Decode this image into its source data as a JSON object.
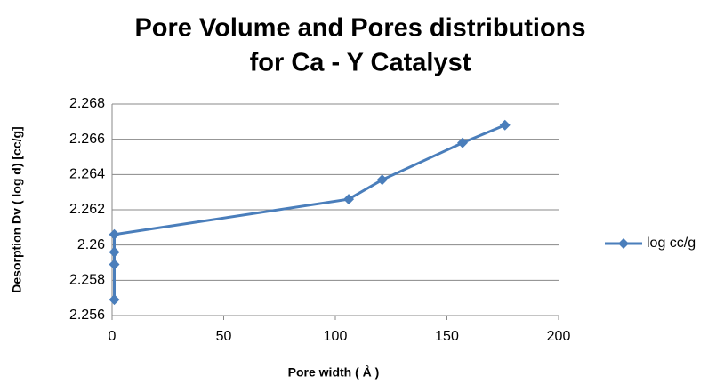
{
  "chart_data": {
    "type": "line",
    "title": [
      "Pore Volume and Pores distributions",
      "for Ca - Y Catalyst"
    ],
    "x_label": "Pore width ( Å )",
    "y_label": "Desorption Dv ( log d) [cc/g]",
    "x": [
      1,
      1,
      1,
      1,
      106,
      121,
      157,
      176
    ],
    "series": [
      {
        "name": "log cc/g",
        "color": "#4a7ebb",
        "values": [
          2.2569,
          2.2589,
          2.2596,
          2.2606,
          2.2626,
          2.2637,
          2.2658,
          2.2668
        ]
      }
    ],
    "xlim": [
      0,
      200
    ],
    "xticks": [
      0,
      50,
      100,
      150,
      200
    ],
    "ylim": [
      2.256,
      2.268
    ],
    "yticks": [
      2.256,
      2.258,
      2.26,
      2.262,
      2.264,
      2.266,
      2.268
    ],
    "grid": true,
    "legend": "right"
  }
}
